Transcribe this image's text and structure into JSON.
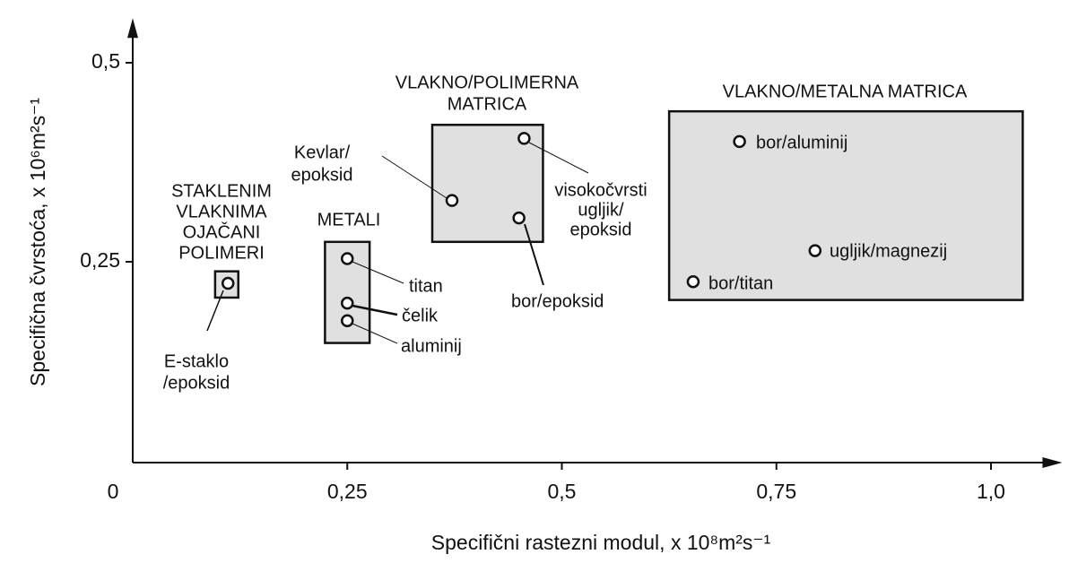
{
  "chart_data": {
    "type": "scatter",
    "x_label": "Specifični rastezni modul, x 10⁸m²s⁻¹",
    "y_label": "Specifična čvrstoća, x 10⁶m²s⁻¹",
    "xlim": [
      0,
      1.083
    ],
    "ylim": [
      0,
      0.556
    ],
    "xticks": [
      0,
      {
        "value": 0.25,
        "label": "0,25"
      },
      {
        "value": 0.5,
        "label": "0,5"
      },
      {
        "value": 0.75,
        "label": "0,75"
      },
      {
        "value": 1.0,
        "label": "1,0"
      }
    ],
    "yticks": [
      {
        "value": 0.25,
        "label": "0,25"
      },
      {
        "value": 0.5,
        "label": "0,5"
      }
    ],
    "groups": [
      {
        "label": [
          "STAKLENIM",
          "VLAKNIMA",
          "OJAČANI",
          "POLIMERI"
        ],
        "x": [
          0.096,
          0.123
        ],
        "y": [
          0.205,
          0.238
        ]
      },
      {
        "label": [
          "METALI"
        ],
        "x": [
          0.224,
          0.276
        ],
        "y": [
          0.148,
          0.275
        ]
      },
      {
        "label": [
          "VLAKNO/POLIMERNA",
          "MATRICA"
        ],
        "x": [
          0.349,
          0.478
        ],
        "y": [
          0.275,
          0.422
        ]
      },
      {
        "label": [
          "VLAKNO/METALNA MATRICA"
        ],
        "x": [
          0.625,
          1.037
        ],
        "y": [
          0.202,
          0.439
        ]
      }
    ],
    "points": [
      {
        "label": [
          "E-staklo",
          "/epoksid"
        ],
        "x": 0.111,
        "y": 0.223
      },
      {
        "label": [
          "titan"
        ],
        "x": 0.25,
        "y": 0.254
      },
      {
        "label": [
          "čelik"
        ],
        "x": 0.25,
        "y": 0.198
      },
      {
        "label": [
          "aluminij"
        ],
        "x": 0.25,
        "y": 0.176
      },
      {
        "label": [
          "Kevlar/",
          "epoksid"
        ],
        "x": 0.372,
        "y": 0.327
      },
      {
        "label": [
          "visokočvrsti",
          "ugljik/",
          "epoksid"
        ],
        "x": 0.456,
        "y": 0.405
      },
      {
        "label": [
          "bor/epoksid"
        ],
        "x": 0.45,
        "y": 0.305
      },
      {
        "label": [
          "bor/aluminij"
        ],
        "x": 0.707,
        "y": 0.401
      },
      {
        "label": [
          "ugljik/magnezij"
        ],
        "x": 0.795,
        "y": 0.264
      },
      {
        "label": [
          "bor/titan"
        ],
        "x": 0.653,
        "y": 0.225
      }
    ]
  }
}
